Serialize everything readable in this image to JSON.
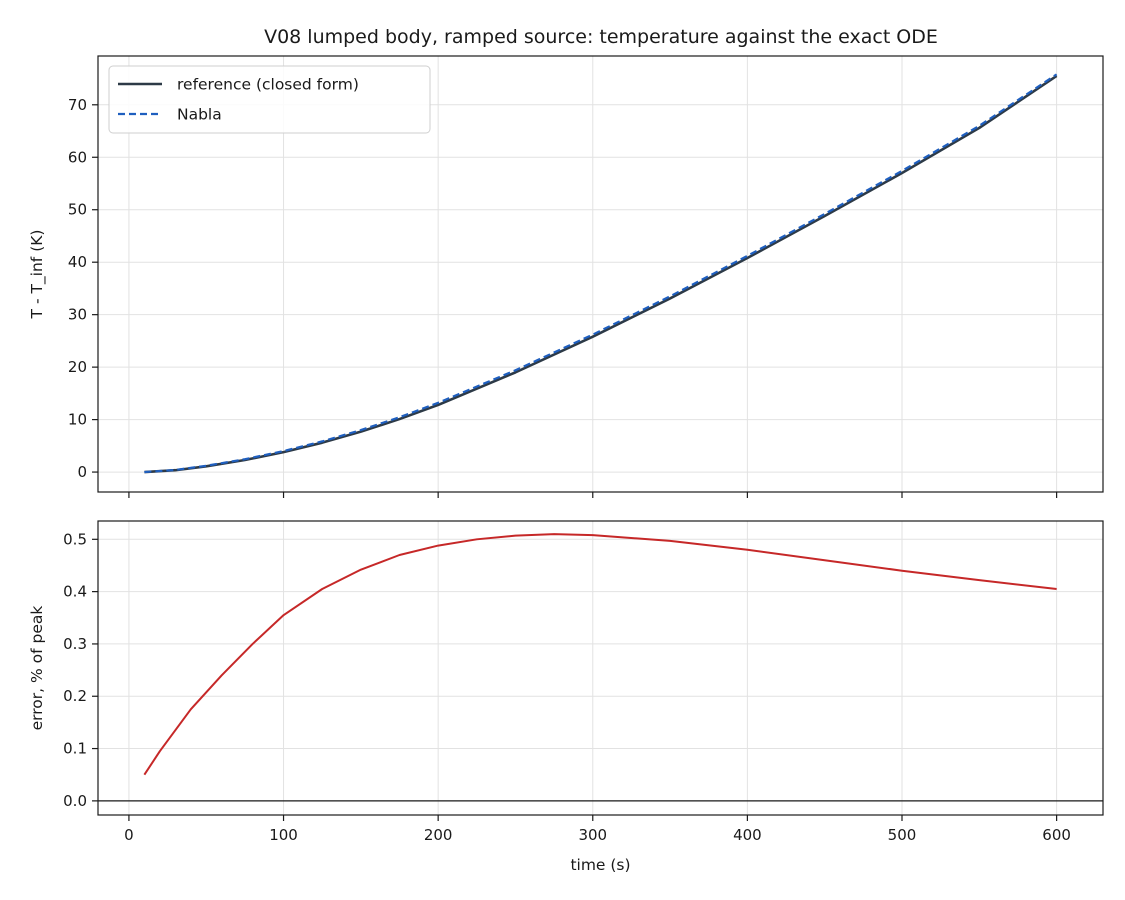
{
  "title": "V08 lumped body, ramped source: temperature against the exact ODE",
  "colors": {
    "reference": "#2d3a47",
    "nabla": "#1f5fbf",
    "error": "#c62828",
    "zero_line": "#1a1a1a",
    "grid": "#e2e2e2"
  },
  "chart_data": [
    {
      "type": "line",
      "xlabel": "",
      "ylabel": "T - T_inf (K)",
      "xlim": [
        -20,
        630
      ],
      "ylim": [
        -3.8,
        79.3
      ],
      "xticks": [
        0,
        100,
        200,
        300,
        400,
        500,
        600
      ],
      "xtick_labels_shown": false,
      "yticks": [
        0,
        10,
        20,
        30,
        40,
        50,
        60,
        70
      ],
      "grid": true,
      "legend": "upper-left",
      "series": [
        {
          "name": "reference (closed form)",
          "style": "solid",
          "x": [
            10,
            30,
            50,
            75,
            100,
            125,
            150,
            175,
            200,
            250,
            300,
            350,
            400,
            450,
            500,
            550,
            600
          ],
          "y": [
            0,
            0.35,
            1.1,
            2.3,
            3.8,
            5.6,
            7.7,
            10.1,
            12.8,
            19.0,
            25.8,
            33.1,
            40.8,
            48.8,
            57.0,
            65.6,
            75.5
          ]
        },
        {
          "name": "Nabla",
          "style": "dashed",
          "x": [
            10,
            30,
            50,
            75,
            100,
            125,
            150,
            175,
            200,
            250,
            300,
            350,
            400,
            450,
            500,
            550,
            600
          ],
          "y": [
            0,
            0.4,
            1.2,
            2.45,
            4.0,
            5.85,
            8.0,
            10.45,
            13.2,
            19.4,
            26.2,
            33.5,
            41.2,
            49.2,
            57.4,
            66.0,
            75.8
          ]
        }
      ]
    },
    {
      "type": "line",
      "xlabel": "time (s)",
      "ylabel": "error, % of peak",
      "xlim": [
        -20,
        630
      ],
      "ylim": [
        -0.027,
        0.535
      ],
      "xticks": [
        0,
        100,
        200,
        300,
        400,
        500,
        600
      ],
      "yticks": [
        0.0,
        0.1,
        0.2,
        0.3,
        0.4,
        0.5
      ],
      "ytick_labels": [
        "0.0",
        "0.1",
        "0.2",
        "0.3",
        "0.4",
        "0.5"
      ],
      "grid": true,
      "zero_line": 0,
      "series": [
        {
          "style": "solid",
          "x": [
            10,
            20,
            40,
            60,
            80,
            100,
            125,
            150,
            175,
            200,
            225,
            250,
            275,
            300,
            350,
            400,
            450,
            500,
            550,
            600
          ],
          "y": [
            0.05,
            0.095,
            0.175,
            0.24,
            0.3,
            0.355,
            0.405,
            0.442,
            0.47,
            0.488,
            0.5,
            0.507,
            0.51,
            0.508,
            0.497,
            0.48,
            0.46,
            0.44,
            0.422,
            0.405
          ]
        }
      ]
    }
  ]
}
